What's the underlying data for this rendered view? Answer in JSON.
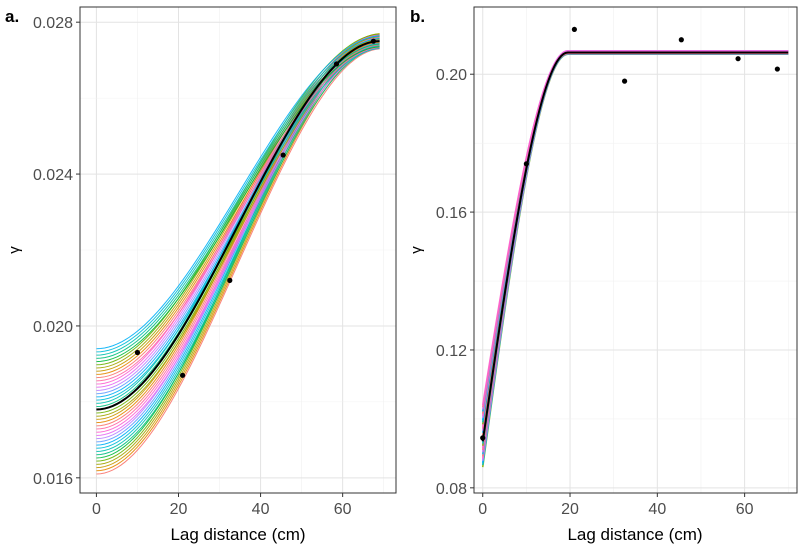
{
  "chart_data": [
    {
      "type": "line",
      "panel_label": "a.",
      "xlabel": "Lag distance (cm)",
      "ylabel": "γ",
      "xlim": [
        -4,
        73
      ],
      "ylim": [
        0.0156,
        0.0284
      ],
      "x_ticks": [
        0,
        20,
        40,
        60
      ],
      "x_tick_labels": [
        "0",
        "20",
        "40",
        "60"
      ],
      "y_ticks": [
        0.016,
        0.02,
        0.024,
        0.028
      ],
      "y_tick_labels": [
        "0.016",
        "0.020",
        "0.024",
        "0.028"
      ],
      "grid": true,
      "legend": "none",
      "points": {
        "x": [
          10,
          21,
          32.5,
          45.5,
          58.5,
          67.5
        ],
        "y": [
          0.0193,
          0.0187,
          0.0212,
          0.0245,
          0.0269,
          0.0275
        ]
      },
      "fitted_curve": {
        "x0": 0,
        "x1": 69,
        "start": 0.0178,
        "end": 0.0275
      },
      "simulations": {
        "count": 40,
        "start_min": 0.0161,
        "start_max": 0.0194,
        "end_min": 0.0273,
        "end_max": 0.0277,
        "colors": [
          "#f8766d",
          "#e58700",
          "#c99800",
          "#a3a500",
          "#6bb100",
          "#00ba38",
          "#00bf7d",
          "#00c0af",
          "#00bcd8",
          "#00b0f6",
          "#619cff",
          "#b983ff",
          "#e76bf3",
          "#fd61d1",
          "#ff67a4"
        ]
      }
    },
    {
      "type": "line",
      "panel_label": "b.",
      "xlabel": "Lag distance (cm)",
      "ylabel": "γ",
      "xlim": [
        -2,
        72
      ],
      "ylim": [
        0.0785,
        0.2195
      ],
      "x_ticks": [
        0,
        20,
        40,
        60
      ],
      "x_tick_labels": [
        "0",
        "20",
        "40",
        "60"
      ],
      "y_ticks": [
        0.08,
        0.12,
        0.16,
        0.2
      ],
      "y_tick_labels": [
        "0.08",
        "0.12",
        "0.16",
        "0.20"
      ],
      "grid": true,
      "legend": "none",
      "points": {
        "x": [
          0,
          10,
          21,
          32.5,
          45.5,
          58.5,
          67.5
        ],
        "y": [
          0.0945,
          0.174,
          0.213,
          0.198,
          0.21,
          0.2045,
          0.2015
        ]
      },
      "fitted_curve": {
        "nugget": 0.0935,
        "sill": 0.2063,
        "range": 19.5,
        "x0": 0,
        "x1": 70
      },
      "simulations": {
        "count": 30,
        "nugget_min": 0.086,
        "nugget_max": 0.104,
        "sill_min": 0.2058,
        "sill_max": 0.2068,
        "colors": [
          "#7cae00",
          "#00bfc4",
          "#00a9ff",
          "#c77cff",
          "#ff61cc",
          "#f8766d",
          "#00b4f0",
          "#e76bf3",
          "#ff6c91",
          "#fd61d1"
        ]
      }
    }
  ]
}
